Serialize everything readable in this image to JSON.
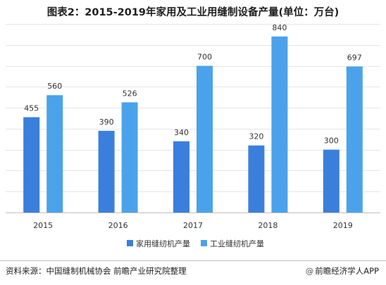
{
  "title": "图表2：2015-2019年家用及工业用缝制设备产量(单位：万台)",
  "chart_data": {
    "type": "bar",
    "categories": [
      "2015",
      "2016",
      "2017",
      "2018",
      "2019"
    ],
    "series": [
      {
        "name": "家用缝纫机产量",
        "values": [
          455,
          390,
          340,
          320,
          300
        ],
        "color": "#3b7fdc"
      },
      {
        "name": "工业缝纫机产量",
        "values": [
          560,
          526,
          700,
          840,
          697
        ],
        "color": "#4aa3ea"
      }
    ],
    "ylim": [
      0,
      900
    ],
    "grid": true,
    "legend": "bottom",
    "data_labels": true
  },
  "footer": {
    "source": "资料来源：中国缝制机械协会 前瞻产业研究院整理",
    "brand": "前瞻经济学人APP",
    "brand_icon": "at-icon"
  }
}
